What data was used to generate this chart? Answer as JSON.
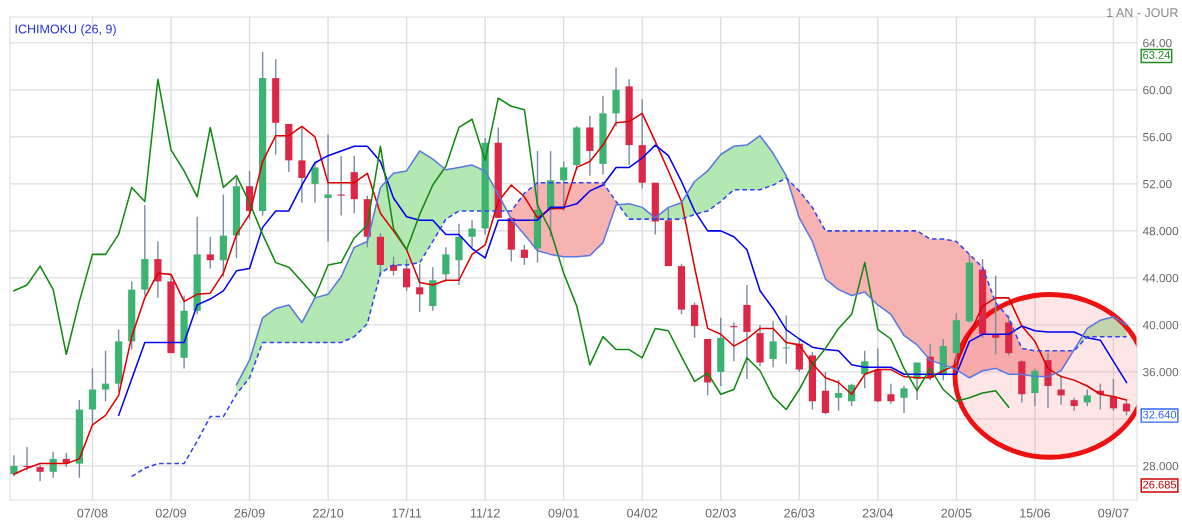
{
  "chart_data": {
    "type": "candlestick",
    "subtitle": "1 AN - JOUR",
    "annotations": [
      "ICHIMOKU (26, 9)",
      "63.24",
      "32.640",
      "26.685"
    ],
    "categories": [
      null,
      null,
      null,
      null,
      null,
      null,
      "07/08",
      null,
      null,
      null,
      null,
      null,
      "02/09",
      null,
      null,
      null,
      null,
      null,
      "26/09",
      null,
      null,
      null,
      null,
      null,
      "22/10",
      null,
      null,
      null,
      null,
      null,
      "17/11",
      null,
      null,
      null,
      null,
      null,
      "11/12",
      null,
      null,
      null,
      null,
      null,
      "09/01",
      null,
      null,
      null,
      null,
      null,
      "04/02",
      null,
      null,
      null,
      null,
      null,
      "02/03",
      null,
      null,
      null,
      null,
      null,
      "26/03",
      null,
      null,
      null,
      null,
      null,
      "23/04",
      null,
      null,
      null,
      null,
      null,
      "20/05",
      null,
      null,
      null,
      null,
      null,
      "15/06",
      null,
      null,
      null,
      null,
      null,
      "09/07",
      null
    ],
    "ohlc": [
      [
        27.3,
        28.9,
        27.1,
        28.0
      ],
      [
        28.0,
        29.6,
        27.6,
        27.9
      ],
      [
        27.9,
        28.1,
        26.685,
        27.5
      ],
      [
        27.5,
        29.2,
        27.0,
        28.6
      ],
      [
        28.6,
        29.1,
        27.9,
        28.2
      ],
      [
        28.2,
        33.6,
        27.0,
        32.8
      ],
      [
        32.8,
        36.3,
        31.5,
        34.5
      ],
      [
        34.5,
        37.8,
        33.5,
        35.0
      ],
      [
        35.0,
        39.6,
        34.3,
        38.6
      ],
      [
        38.6,
        43.7,
        37.9,
        43.0
      ],
      [
        43.0,
        50.2,
        42.5,
        45.6
      ],
      [
        45.6,
        47.1,
        42.3,
        43.7
      ],
      [
        43.7,
        44.3,
        37.6,
        37.6
      ],
      [
        37.2,
        42.5,
        36.3,
        41.2
      ],
      [
        41.2,
        49.2,
        40.9,
        46.0
      ],
      [
        46.0,
        47.5,
        44.8,
        45.5
      ],
      [
        45.5,
        51.1,
        44.1,
        47.6
      ],
      [
        47.6,
        52.5,
        45.7,
        51.8
      ],
      [
        51.8,
        53.1,
        49.0,
        49.7
      ],
      [
        49.7,
        63.24,
        49.3,
        61.0
      ],
      [
        61.0,
        62.6,
        54.5,
        57.2
      ],
      [
        57.1,
        57.1,
        53.0,
        54.0
      ],
      [
        54.0,
        56.8,
        50.4,
        52.5
      ],
      [
        52.0,
        53.9,
        50.4,
        53.4
      ],
      [
        50.8,
        56.2,
        47.1,
        51.1
      ],
      [
        51.1,
        54.4,
        49.3,
        51.0
      ],
      [
        53.0,
        54.4,
        49.5,
        50.7
      ],
      [
        50.7,
        51.0,
        46.6,
        47.5
      ],
      [
        47.5,
        47.8,
        44.2,
        45.1
      ],
      [
        45.1,
        45.8,
        44.2,
        44.6
      ],
      [
        44.8,
        45.6,
        42.9,
        43.2
      ],
      [
        43.2,
        45.2,
        41.1,
        42.6
      ],
      [
        41.6,
        44.9,
        41.2,
        43.8
      ],
      [
        44.3,
        46.6,
        43.7,
        46.0
      ],
      [
        45.5,
        48.6,
        43.4,
        47.5
      ],
      [
        47.5,
        48.9,
        46.6,
        48.2
      ],
      [
        48.2,
        55.9,
        47.7,
        55.5
      ],
      [
        55.5,
        56.8,
        49.1,
        49.1
      ],
      [
        49.1,
        49.2,
        45.4,
        46.4
      ],
      [
        46.4,
        46.8,
        45.1,
        45.7
      ],
      [
        46.5,
        54.8,
        45.3,
        49.8
      ],
      [
        49.8,
        54.8,
        47.5,
        52.3
      ],
      [
        52.3,
        53.9,
        49.7,
        53.4
      ],
      [
        53.6,
        56.9,
        53.2,
        56.8
      ],
      [
        56.8,
        57.8,
        52.7,
        54.8
      ],
      [
        53.7,
        59.5,
        52.8,
        58.0
      ],
      [
        58.0,
        61.9,
        56.9,
        60.0
      ],
      [
        60.3,
        60.9,
        53.6,
        55.3
      ],
      [
        55.3,
        59.2,
        51.6,
        52.1
      ],
      [
        52.1,
        52.1,
        47.7,
        48.8
      ],
      [
        48.9,
        49.9,
        45.0,
        45.0
      ],
      [
        45.0,
        45.2,
        40.9,
        41.3
      ],
      [
        41.7,
        41.9,
        38.9,
        39.9
      ],
      [
        38.8,
        38.8,
        34.0,
        35.1
      ],
      [
        36.0,
        40.6,
        34.8,
        38.9
      ],
      [
        39.9,
        40.2,
        36.9,
        39.8
      ],
      [
        41.7,
        43.4,
        35.4,
        39.4
      ],
      [
        39.3,
        40.0,
        36.5,
        36.8
      ],
      [
        37.1,
        40.3,
        36.4,
        38.6
      ],
      [
        38.0,
        40.8,
        36.7,
        38.0
      ],
      [
        38.4,
        38.7,
        36.0,
        36.2
      ],
      [
        37.4,
        37.7,
        32.8,
        33.5
      ],
      [
        34.4,
        36.0,
        32.4,
        32.5
      ],
      [
        33.8,
        35.3,
        32.7,
        34.2
      ],
      [
        33.5,
        35.0,
        33.1,
        34.9
      ],
      [
        35.8,
        37.8,
        34.6,
        36.9
      ],
      [
        36.2,
        38.0,
        33.4,
        33.5
      ],
      [
        34.1,
        35.0,
        33.3,
        33.5
      ],
      [
        33.8,
        34.8,
        32.5,
        34.6
      ],
      [
        35.4,
        36.8,
        33.6,
        36.8
      ],
      [
        37.3,
        38.4,
        35.3,
        35.5
      ],
      [
        35.8,
        38.8,
        35.3,
        38.2
      ],
      [
        37.6,
        41.0,
        36.4,
        40.4
      ],
      [
        40.3,
        46.0,
        40.2,
        45.3
      ],
      [
        44.7,
        45.6,
        38.9,
        39.2
      ],
      [
        39.2,
        44.2,
        37.5,
        38.9
      ],
      [
        40.2,
        40.8,
        37.4,
        37.6
      ],
      [
        36.9,
        37.0,
        33.4,
        34.1
      ],
      [
        34.2,
        36.3,
        33.1,
        36.1
      ],
      [
        37.0,
        37.6,
        32.9,
        34.8
      ],
      [
        34.5,
        35.7,
        33.2,
        34.0
      ],
      [
        33.6,
        33.8,
        32.7,
        33.1
      ],
      [
        33.4,
        34.5,
        33.1,
        34.0
      ],
      [
        34.4,
        35.0,
        32.8,
        34.1
      ],
      [
        33.9,
        35.4,
        32.7,
        32.9
      ],
      [
        33.3,
        33.5,
        32.3,
        32.64
      ]
    ],
    "series": [
      {
        "type": "line",
        "color": "#dd0000",
        "line_style": "solid",
        "values": [
          27.3,
          27.8,
          28.2,
          28.2,
          28.2,
          28.6,
          31.5,
          32.3,
          34.0,
          39.0,
          42.3,
          44.4,
          44.3,
          42.0,
          42.6,
          42.7,
          44.4,
          47.7,
          49.4,
          53.9,
          56.1,
          56.1,
          56.9,
          56.0,
          52.1,
          52.1,
          52.1,
          52.9,
          49.5,
          48.0,
          46.4,
          43.6,
          43.4,
          43.8,
          43.8,
          46.0,
          46.8,
          50.5,
          51.9,
          50.9,
          49.1,
          49.9,
          49.9,
          53.4,
          53.9,
          55.3,
          57.2,
          57.3,
          58.0,
          55.6,
          53.1,
          50.5,
          44.9,
          39.7,
          39.2,
          38.2,
          38.8,
          39.7,
          39.7,
          38.5,
          38.3,
          36.7,
          35.5,
          35.1,
          34.1,
          35.8,
          36.2,
          36.2,
          35.6,
          35.5,
          35.5,
          36.1,
          36.6,
          39.2,
          41.6,
          42.3,
          42.3,
          39.9,
          38.6,
          36.3,
          35.6,
          35.3,
          34.8,
          34.1,
          33.9,
          33.6
        ]
      },
      {
        "type": "line",
        "color": "#0000ee",
        "line_style": "solid",
        "values": [
          null,
          null,
          null,
          null,
          null,
          null,
          null,
          null,
          32.3,
          35.4,
          38.5,
          38.5,
          38.5,
          38.5,
          41.7,
          42.2,
          42.9,
          44.6,
          44.8,
          48.3,
          49.7,
          49.7,
          51.9,
          53.8,
          54.4,
          54.8,
          55.2,
          55.2,
          53.9,
          50.8,
          49.2,
          48.9,
          48.9,
          47.7,
          47.7,
          46.5,
          45.7,
          48.9,
          48.9,
          48.9,
          48.9,
          50.0,
          50.0,
          50.3,
          51.4,
          51.9,
          53.4,
          53.4,
          54.2,
          55.3,
          54.4,
          52.2,
          49.7,
          48.0,
          48.0,
          47.5,
          46.4,
          42.9,
          41.4,
          39.6,
          38.8,
          38.1,
          37.9,
          37.8,
          36.6,
          36.4,
          36.4,
          36.4,
          35.8,
          35.8,
          35.8,
          35.8,
          35.8,
          38.6,
          39.2,
          39.2,
          39.2,
          39.9,
          39.5,
          39.4,
          39.4,
          39.4,
          38.9,
          38.7,
          36.9,
          35.1
        ]
      },
      {
        "type": "line",
        "color": "#118811",
        "line_style": "solid",
        "values": [
          42.9,
          43.4,
          45.0,
          43.0,
          37.5,
          42.0,
          46.0,
          46.0,
          47.7,
          51.7,
          50.5,
          60.9,
          54.9,
          53.1,
          50.9,
          56.8,
          51.7,
          52.7,
          50.4,
          47.7,
          45.3,
          44.9,
          43.7,
          42.4,
          45.1,
          45.3,
          47.4,
          48.5,
          55.2,
          48.2,
          46.4,
          49.4,
          51.9,
          53.5,
          56.8,
          57.5,
          54.0,
          59.3,
          58.6,
          58.3,
          50.2,
          48.0,
          44.4,
          41.6,
          36.6,
          39.0,
          37.9,
          37.9,
          37.2,
          39.7,
          39.5,
          37.3,
          35.2,
          35.9,
          34.1,
          34.5,
          37.2,
          36.1,
          33.9,
          32.8,
          34.5,
          36.6,
          38.0,
          39.7,
          40.9,
          45.3,
          39.6,
          38.8,
          36.3,
          34.4,
          36.3,
          34.5,
          33.5,
          33.8,
          34.2,
          34.4,
          33.0,
          null,
          null,
          null,
          null,
          null,
          null,
          null,
          null,
          null
        ]
      },
      {
        "type": "line",
        "color": "#5a78e0",
        "line_style": "solid",
        "values": [
          null,
          null,
          null,
          null,
          null,
          null,
          null,
          null,
          null,
          null,
          null,
          null,
          null,
          null,
          null,
          null,
          null,
          34.9,
          37.0,
          40.6,
          41.4,
          41.7,
          40.2,
          42.3,
          42.6,
          44.1,
          46.6,
          47.1,
          51.7,
          52.9,
          53.1,
          54.8,
          54.1,
          53.2,
          53.4,
          53.6,
          53.1,
          51.1,
          49.0,
          47.7,
          46.3,
          46.0,
          45.8,
          45.8,
          45.9,
          47.0,
          50.2,
          50.3,
          50.0,
          49.1,
          50.0,
          50.4,
          52.2,
          53.1,
          54.5,
          55.2,
          55.3,
          56.1,
          54.6,
          52.7,
          49.1,
          47.1,
          43.9,
          43.0,
          42.5,
          42.8,
          41.7,
          40.9,
          39.1,
          38.3,
          37.0,
          36.6,
          36.2,
          35.5,
          36.1,
          36.3,
          35.8,
          35.8,
          35.6,
          35.6,
          36.1,
          37.9,
          39.7,
          40.4,
          40.7,
          40.0
        ]
      },
      {
        "type": "line",
        "color": "#3344ee",
        "line_style": "dashed",
        "values": [
          null,
          null,
          null,
          null,
          null,
          null,
          null,
          null,
          null,
          27.1,
          27.8,
          28.2,
          28.2,
          28.2,
          30.1,
          32.2,
          32.2,
          34.1,
          35.5,
          38.5,
          38.5,
          38.5,
          38.5,
          38.5,
          38.5,
          38.5,
          39.0,
          40.1,
          44.4,
          45.1,
          45.1,
          45.3,
          47.1,
          49.0,
          49.7,
          49.7,
          49.7,
          49.7,
          49.7,
          51.2,
          52.1,
          52.1,
          52.1,
          52.1,
          52.1,
          52.1,
          50.5,
          49.0,
          49.0,
          49.0,
          49.0,
          49.0,
          49.4,
          49.7,
          50.5,
          51.5,
          51.5,
          51.5,
          51.9,
          52.5,
          51.4,
          50.0,
          48.0,
          48.0,
          48.0,
          48.0,
          48.0,
          48.0,
          48.0,
          48.0,
          47.3,
          47.3,
          47.1,
          46.0,
          44.9,
          41.9,
          40.6,
          38.0,
          37.8,
          37.8,
          37.8,
          37.8,
          39.0,
          39.0,
          39.0,
          39.0
        ]
      }
    ],
    "ylim": [
      25.1,
      66.2
    ],
    "yticks": [
      {
        "value": 28,
        "label": "28.000"
      },
      {
        "value": 32,
        "label": null
      },
      {
        "value": 36,
        "label": "36.000"
      },
      {
        "value": 40,
        "label": "40.000"
      },
      {
        "value": 44,
        "label": "44.000"
      },
      {
        "value": 48,
        "label": "48.000"
      },
      {
        "value": 52,
        "label": "52.00"
      },
      {
        "value": 56,
        "label": "56.00"
      },
      {
        "value": 60,
        "label": "60.00"
      },
      {
        "value": 64,
        "label": "64.00"
      }
    ],
    "grid": true
  }
}
